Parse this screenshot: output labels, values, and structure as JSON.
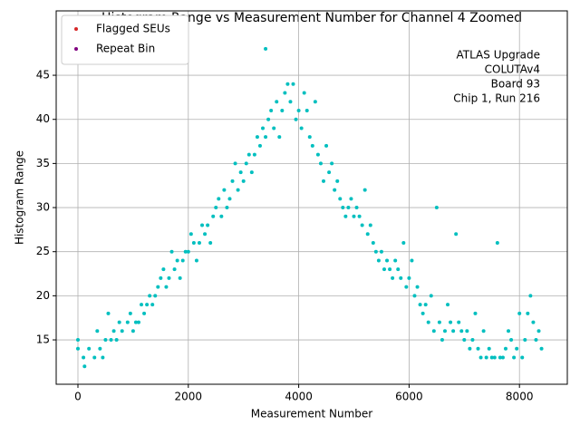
{
  "chart_data": {
    "type": "scatter",
    "title": "Histogram Range vs Measurement Number for Channel 4 Zoomed",
    "xlabel": "Measurement Number",
    "ylabel": "Histogram Range",
    "annotation": [
      "ATLAS Upgrade",
      "COLUTAv4",
      "Board 93",
      "Chip 1, Run 216"
    ],
    "xlim": [
      -394,
      8867
    ],
    "ylim": [
      9.97,
      52.3
    ],
    "xticks": [
      0,
      2000,
      4000,
      6000,
      8000
    ],
    "yticks": [
      15,
      20,
      25,
      30,
      35,
      40,
      45
    ],
    "grid": true,
    "legend": "upper left",
    "series": [
      {
        "name": "Flagged SEUs",
        "color": "#d62728",
        "x": [],
        "values": []
      },
      {
        "name": "Repeat Bin",
        "color": "#800080",
        "x": [],
        "values": []
      },
      {
        "color": "#00bfbf",
        "x": [
          0,
          0,
          100,
          120,
          200,
          300,
          350,
          400,
          450,
          500,
          550,
          600,
          650,
          700,
          750,
          800,
          900,
          950,
          1000,
          1050,
          1100,
          1150,
          1200,
          1250,
          1300,
          1350,
          1400,
          1450,
          1500,
          1550,
          1600,
          1650,
          1700,
          1750,
          1800,
          1850,
          1900,
          1950,
          2000,
          2050,
          2100,
          2150,
          2200,
          2250,
          2300,
          2350,
          2400,
          2450,
          2500,
          2550,
          2600,
          2650,
          2700,
          2750,
          2800,
          2850,
          2900,
          2950,
          3000,
          3050,
          3100,
          3150,
          3200,
          3250,
          3300,
          3350,
          3400,
          3400,
          3450,
          3500,
          3550,
          3600,
          3650,
          3700,
          3750,
          3800,
          3850,
          3900,
          3950,
          4000,
          4050,
          4100,
          4150,
          4200,
          4250,
          4300,
          4350,
          4400,
          4450,
          4500,
          4550,
          4600,
          4650,
          4700,
          4750,
          4800,
          4850,
          4900,
          4950,
          5000,
          5050,
          5100,
          5150,
          5200,
          5250,
          5300,
          5350,
          5400,
          5450,
          5500,
          5550,
          5600,
          5650,
          5700,
          5750,
          5800,
          5850,
          5900,
          5950,
          6000,
          6050,
          6100,
          6150,
          6200,
          6250,
          6300,
          6350,
          6400,
          6450,
          6500,
          6550,
          6600,
          6650,
          6700,
          6750,
          6800,
          6850,
          6900,
          6950,
          7000,
          7050,
          7100,
          7150,
          7200,
          7250,
          7300,
          7350,
          7400,
          7450,
          7500,
          7550,
          7600,
          7650,
          7700,
          7750,
          7800,
          7850,
          7900,
          7950,
          8000,
          8050,
          8100,
          8150,
          8200,
          8250,
          8300,
          8350,
          8400
        ],
        "values": [
          15,
          14,
          13,
          12,
          14,
          13,
          16,
          14,
          13,
          15,
          18,
          15,
          16,
          15,
          17,
          16,
          17,
          18,
          16,
          17,
          17,
          19,
          18,
          19,
          20,
          19,
          20,
          21,
          22,
          23,
          21,
          22,
          25,
          23,
          24,
          22,
          24,
          25,
          25,
          27,
          26,
          24,
          26,
          28,
          27,
          28,
          26,
          29,
          30,
          31,
          29,
          32,
          30,
          31,
          33,
          35,
          32,
          34,
          33,
          35,
          36,
          34,
          36,
          38,
          37,
          39,
          48,
          38,
          40,
          41,
          39,
          42,
          38,
          41,
          43,
          44,
          42,
          44,
          40,
          41,
          39,
          43,
          41,
          38,
          37,
          42,
          36,
          35,
          33,
          37,
          34,
          35,
          32,
          33,
          31,
          30,
          29,
          30,
          31,
          29,
          30,
          29,
          28,
          32,
          27,
          28,
          26,
          25,
          24,
          25,
          23,
          24,
          23,
          22,
          24,
          23,
          22,
          26,
          21,
          22,
          24,
          20,
          21,
          19,
          18,
          19,
          17,
          20,
          16,
          30,
          17,
          15,
          16,
          19,
          17,
          16,
          27,
          17,
          16,
          15,
          16,
          14,
          15,
          18,
          14,
          13,
          16,
          13,
          14,
          13,
          13,
          26,
          13,
          13,
          14,
          16,
          15,
          13,
          14,
          18,
          13,
          15,
          18,
          20,
          17,
          15,
          16,
          14
        ]
      }
    ]
  }
}
